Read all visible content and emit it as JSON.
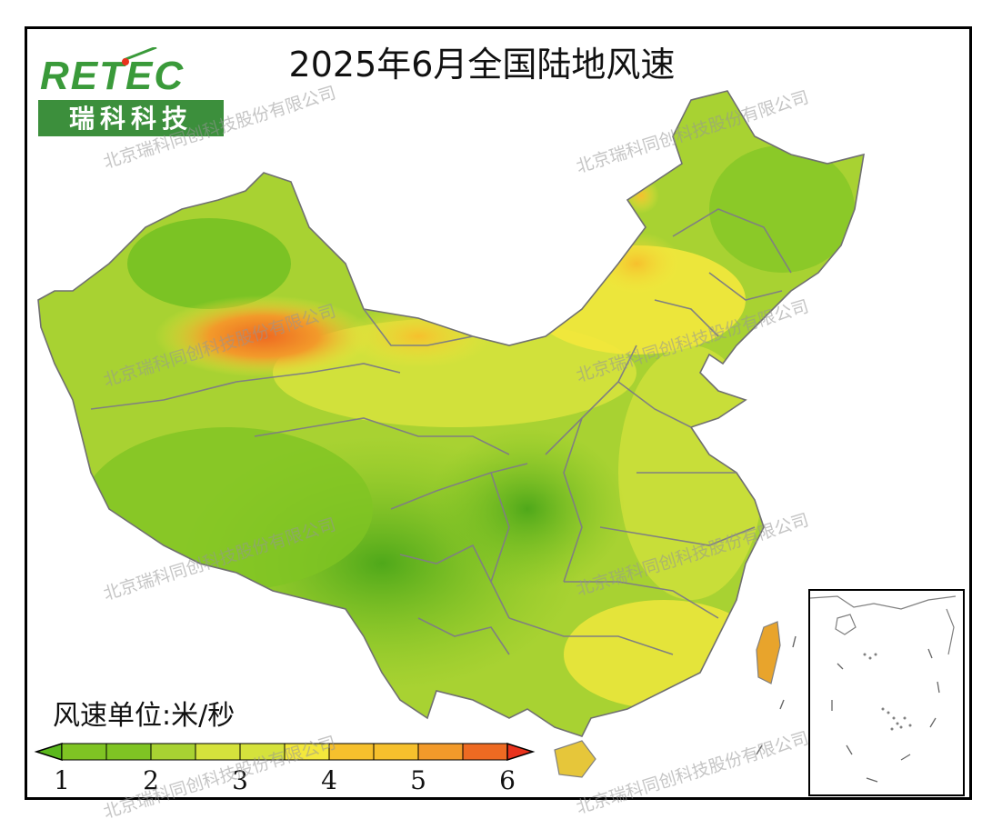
{
  "title": "2025年6月全国陆地风速",
  "logo": {
    "brand": "RETEC",
    "name_cn": "瑞科科技"
  },
  "legend": {
    "unit_label": "风速单位:米/秒",
    "ticks": [
      "1",
      "2",
      "3",
      "4",
      "5",
      "6"
    ],
    "colors": [
      "#5bb81d",
      "#7fc423",
      "#a8d232",
      "#d5e23c",
      "#f3e83c",
      "#f6c02d",
      "#f29a2a",
      "#ee6a22",
      "#e9331d"
    ]
  },
  "watermark": "北京瑞科同创科技股份有限公司",
  "colors": {
    "frame": "#000000",
    "province_border": "#808080",
    "ocean_inset_border": "#000000"
  }
}
